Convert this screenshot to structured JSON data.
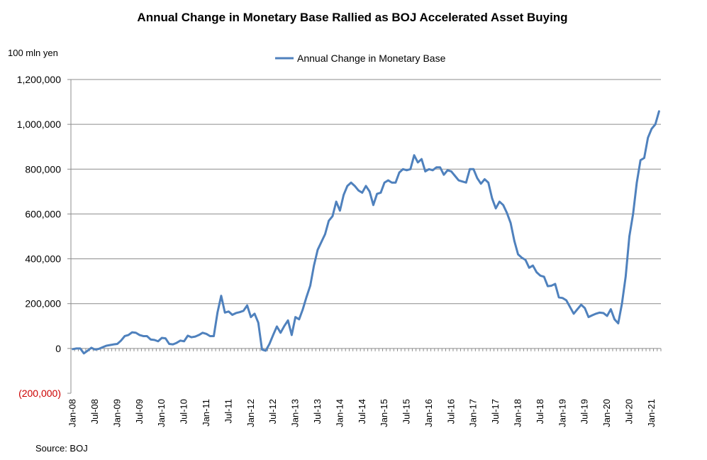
{
  "chart_data": {
    "type": "line",
    "title": "Annual Change in Monetary Base Rallied as BOJ Accelerated Asset Buying",
    "ylabel": "100 mln yen",
    "source": "Source: BOJ",
    "ylim": [
      -200000,
      1200000
    ],
    "yticks": [
      -200000,
      0,
      200000,
      400000,
      600000,
      800000,
      1000000,
      1200000
    ],
    "ytick_labels": [
      "(200,000)",
      "0",
      "200,000",
      "400,000",
      "600,000",
      "800,000",
      "1,000,000",
      "1,200,000"
    ],
    "xtick_labels": [
      "Jan-08",
      "Jul-08",
      "Jan-09",
      "Jul-09",
      "Jan-10",
      "Jul-10",
      "Jan-11",
      "Jul-11",
      "Jan-12",
      "Jul-12",
      "Jan-13",
      "Jul-13",
      "Jan-14",
      "Jul-14",
      "Jan-15",
      "Jul-15",
      "Jan-16",
      "Jul-16",
      "Jan-17",
      "Jul-17",
      "Jan-18",
      "Jul-18",
      "Jan-19",
      "Jul-19",
      "Jan-20",
      "Jul-20",
      "Jan-21"
    ],
    "legend_position": "top-center",
    "colors": {
      "line": "#4f81bd",
      "negative_label": "#cc0000"
    },
    "series": [
      {
        "name": "Annual Change in Monetary Base",
        "start": "Jan-08",
        "values": [
          -3000,
          0,
          0,
          -22000,
          -10000,
          3000,
          -5000,
          -2000,
          5000,
          12000,
          15000,
          18000,
          20000,
          35000,
          55000,
          60000,
          72000,
          70000,
          60000,
          55000,
          55000,
          40000,
          38000,
          32000,
          47000,
          45000,
          20000,
          18000,
          25000,
          35000,
          32000,
          57000,
          50000,
          53000,
          60000,
          70000,
          65000,
          55000,
          55000,
          160000,
          235000,
          160000,
          165000,
          150000,
          158000,
          162000,
          168000,
          192000,
          140000,
          155000,
          115000,
          -5000,
          -10000,
          20000,
          60000,
          98000,
          70000,
          100000,
          125000,
          60000,
          140000,
          130000,
          175000,
          230000,
          280000,
          370000,
          440000,
          475000,
          510000,
          570000,
          590000,
          655000,
          615000,
          685000,
          725000,
          740000,
          725000,
          705000,
          695000,
          725000,
          700000,
          640000,
          690000,
          695000,
          740000,
          750000,
          740000,
          740000,
          785000,
          800000,
          795000,
          800000,
          862000,
          830000,
          845000,
          790000,
          800000,
          795000,
          808000,
          808000,
          775000,
          795000,
          790000,
          770000,
          750000,
          745000,
          740000,
          800000,
          800000,
          760000,
          735000,
          755000,
          740000,
          670000,
          625000,
          655000,
          640000,
          605000,
          560000,
          480000,
          420000,
          405000,
          395000,
          360000,
          370000,
          340000,
          325000,
          320000,
          278000,
          280000,
          288000,
          228000,
          225000,
          215000,
          185000,
          155000,
          175000,
          195000,
          180000,
          140000,
          148000,
          155000,
          160000,
          158000,
          145000,
          175000,
          130000,
          112000,
          200000,
          320000,
          500000,
          600000,
          740000,
          840000,
          850000,
          940000,
          980000,
          1000000,
          1058000
        ]
      }
    ]
  }
}
